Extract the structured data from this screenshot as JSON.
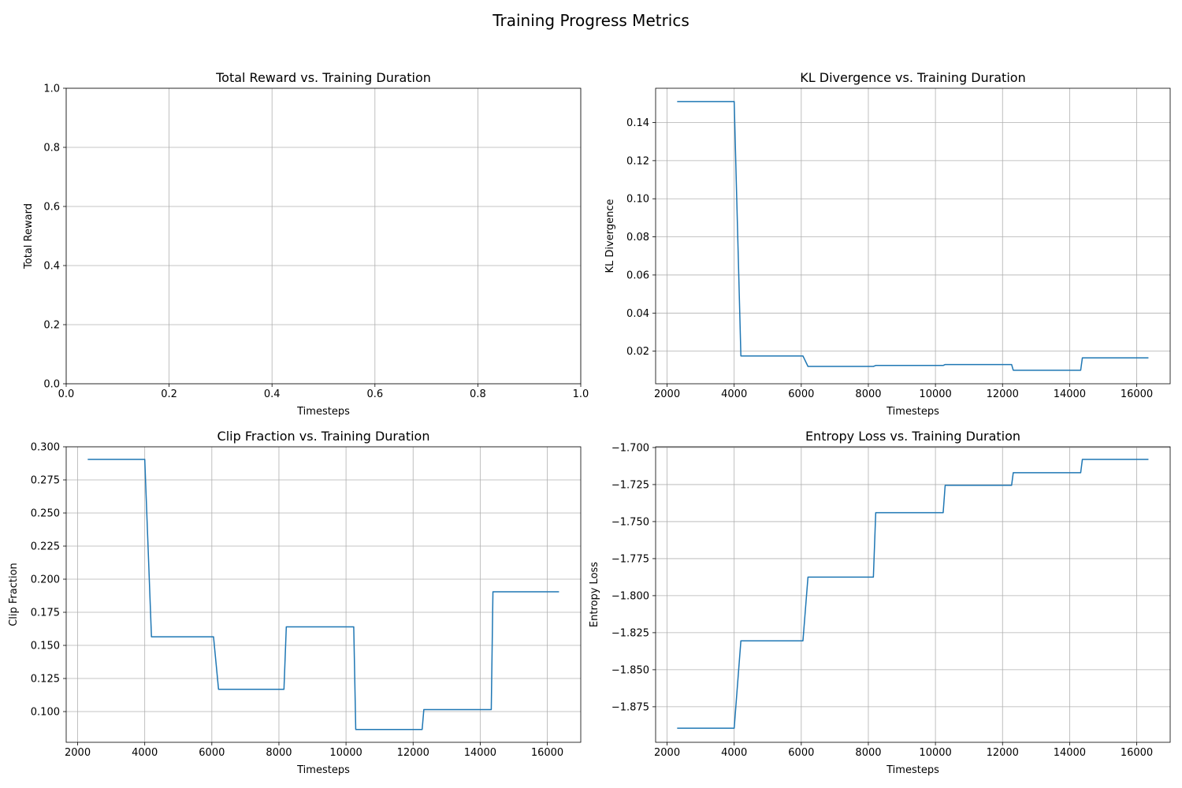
{
  "figure": {
    "title": "Training Progress Metrics"
  },
  "colors": {
    "line": "#1f77b4",
    "grid": "#b0b0b0",
    "axis": "#000000"
  },
  "chart_data": [
    {
      "type": "line",
      "title": "Total Reward vs. Training Duration",
      "xlabel": "Timesteps",
      "ylabel": "Total Reward",
      "xlim": [
        0,
        1
      ],
      "ylim": [
        0,
        1
      ],
      "xticks": [
        0,
        0.2,
        0.4,
        0.6,
        0.8,
        1.0
      ],
      "xtick_labels": [
        "0.0",
        "0.2",
        "0.4",
        "0.6",
        "0.8",
        "1.0"
      ],
      "yticks": [
        0,
        0.2,
        0.4,
        0.6,
        0.8,
        1.0
      ],
      "ytick_labels": [
        "0.0",
        "0.2",
        "0.4",
        "0.6",
        "0.8",
        "1.0"
      ],
      "grid": true,
      "series": [
        {
          "x": [],
          "y": []
        }
      ]
    },
    {
      "type": "line",
      "title": "KL Divergence vs. Training Duration",
      "xlabel": "Timesteps",
      "ylabel": "KL Divergence",
      "xlim": [
        1658,
        16998
      ],
      "ylim": [
        0.0029,
        0.158
      ],
      "xticks": [
        2000,
        4000,
        6000,
        8000,
        10000,
        12000,
        14000,
        16000
      ],
      "xtick_labels": [
        "2000",
        "4000",
        "6000",
        "8000",
        "10000",
        "12000",
        "14000",
        "16000"
      ],
      "yticks": [
        0.02,
        0.04,
        0.06,
        0.08,
        0.1,
        0.12,
        0.14
      ],
      "ytick_labels": [
        "0.02",
        "0.04",
        "0.06",
        "0.08",
        "0.10",
        "0.12",
        "0.14"
      ],
      "grid": true,
      "series": [
        {
          "x": [
            2300,
            4000,
            4200,
            6050,
            6200,
            8150,
            8220,
            10230,
            10290,
            12270,
            12320,
            14330,
            14380,
            16350
          ],
          "y": [
            0.151,
            0.151,
            0.0175,
            0.0175,
            0.012,
            0.012,
            0.0125,
            0.0125,
            0.013,
            0.013,
            0.01,
            0.01,
            0.0165,
            0.0165
          ]
        }
      ]
    },
    {
      "type": "line",
      "title": "Clip Fraction vs. Training Duration",
      "xlabel": "Timesteps",
      "ylabel": "Clip Fraction",
      "xlim": [
        1658,
        16998
      ],
      "ylim": [
        0.0768,
        0.3
      ],
      "xticks": [
        2000,
        4000,
        6000,
        8000,
        10000,
        12000,
        14000,
        16000
      ],
      "xtick_labels": [
        "2000",
        "4000",
        "6000",
        "8000",
        "10000",
        "12000",
        "14000",
        "16000"
      ],
      "yticks": [
        0.1,
        0.125,
        0.15,
        0.175,
        0.2,
        0.225,
        0.25,
        0.275,
        0.3
      ],
      "ytick_labels": [
        "0.100",
        "0.125",
        "0.150",
        "0.175",
        "0.200",
        "0.225",
        "0.250",
        "0.275",
        "0.300"
      ],
      "grid": true,
      "series": [
        {
          "x": [
            2300,
            4000,
            4200,
            6050,
            6200,
            8150,
            8220,
            10230,
            10290,
            12270,
            12320,
            14330,
            14380,
            16350
          ],
          "y": [
            0.2905,
            0.2905,
            0.1565,
            0.1565,
            0.1168,
            0.1168,
            0.164,
            0.164,
            0.0865,
            0.0865,
            0.1015,
            0.1015,
            0.1905,
            0.1905
          ]
        }
      ]
    },
    {
      "type": "line",
      "title": "Entropy Loss vs. Training Duration",
      "xlabel": "Timesteps",
      "ylabel": "Entropy Loss",
      "xlim": [
        1658,
        16998
      ],
      "ylim": [
        -1.899,
        -1.6995
      ],
      "xticks": [
        2000,
        4000,
        6000,
        8000,
        10000,
        12000,
        14000,
        16000
      ],
      "xtick_labels": [
        "2000",
        "4000",
        "6000",
        "8000",
        "10000",
        "12000",
        "14000",
        "16000"
      ],
      "yticks": [
        -1.875,
        -1.85,
        -1.825,
        -1.8,
        -1.775,
        -1.75,
        -1.725,
        -1.7
      ],
      "ytick_labels": [
        "−1.875",
        "−1.850",
        "−1.825",
        "−1.800",
        "−1.775",
        "−1.750",
        "−1.725",
        "−1.700"
      ],
      "grid": true,
      "series": [
        {
          "x": [
            2300,
            4000,
            4200,
            6050,
            6200,
            8150,
            8220,
            10230,
            10290,
            12270,
            12320,
            14330,
            14380,
            16350
          ],
          "y": [
            -1.8895,
            -1.8895,
            -1.8305,
            -1.8305,
            -1.7875,
            -1.7875,
            -1.744,
            -1.744,
            -1.7255,
            -1.7255,
            -1.717,
            -1.717,
            -1.708,
            -1.708
          ]
        }
      ]
    }
  ]
}
